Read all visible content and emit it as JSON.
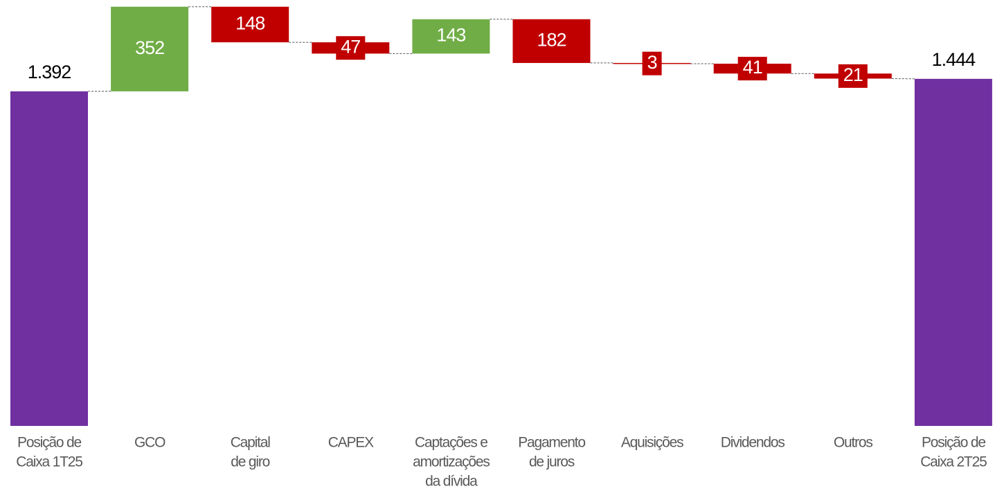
{
  "chart_data": {
    "type": "waterfall",
    "categories": [
      [
        "Posição de",
        "Caixa 1T25"
      ],
      [
        "GCO"
      ],
      [
        "Capital",
        "de giro"
      ],
      [
        "CAPEX"
      ],
      [
        "Captações e",
        "amortizações",
        "da dívida"
      ],
      [
        "Pagamento",
        "de juros"
      ],
      [
        "Aquisições"
      ],
      [
        "Dividendos"
      ],
      [
        "Outros"
      ],
      [
        "Posição de",
        "Caixa 2T25"
      ]
    ],
    "values": [
      1392,
      352,
      -148,
      -47,
      143,
      -182,
      -3,
      -41,
      -21,
      1444
    ],
    "value_labels": [
      "1.392",
      "352",
      "148",
      "47",
      "143",
      "182",
      "3",
      "41",
      "21",
      "1.444"
    ],
    "measure": [
      "total",
      "relative",
      "relative",
      "relative",
      "relative",
      "relative",
      "relative",
      "relative",
      "relative",
      "total"
    ],
    "colors": {
      "total": "#7030a0",
      "increase": "#70ad47",
      "decrease": "#c00000"
    },
    "ylim": [
      0,
      1772
    ]
  }
}
